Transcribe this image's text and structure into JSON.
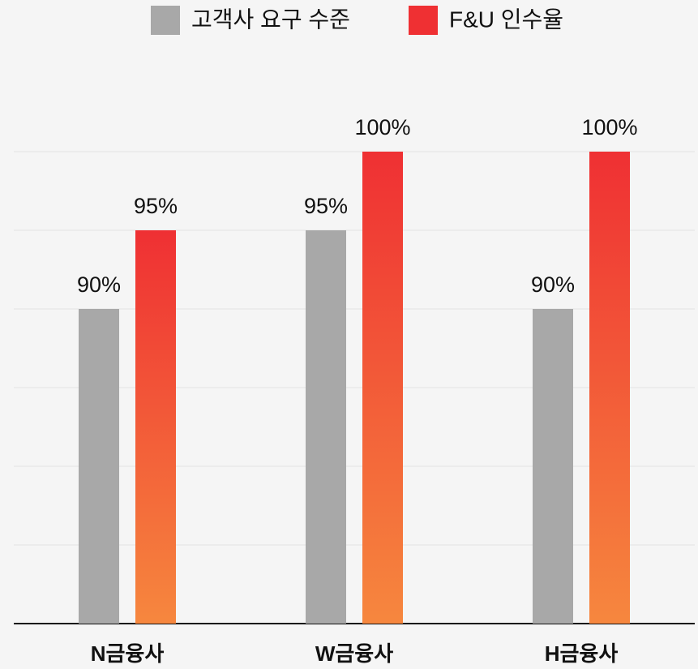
{
  "chart_data": {
    "type": "bar",
    "categories": [
      "N금융사",
      "W금융사",
      "H금융사"
    ],
    "series": [
      {
        "name": "고객사 요구 수준",
        "color": "#a8a8a8",
        "values": [
          90,
          95,
          90
        ],
        "value_labels": [
          "90%",
          "95%",
          "90%"
        ]
      },
      {
        "name": "F&U 인수율",
        "color": "#ef3033",
        "gradient_bottom": "#f6873e",
        "values": [
          95,
          100,
          100
        ],
        "value_labels": [
          "95%",
          "100%",
          "100%"
        ]
      }
    ],
    "ylim": [
      70,
      100
    ],
    "yticks": [
      70,
      75,
      80,
      85,
      90,
      95,
      100
    ],
    "grid": true,
    "legend": "top"
  }
}
